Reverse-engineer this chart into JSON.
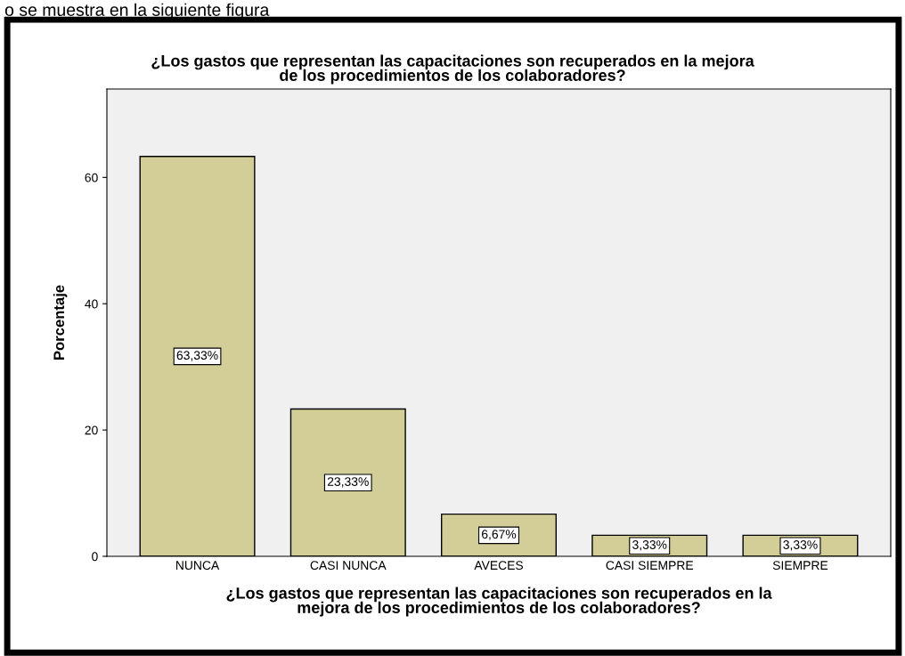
{
  "chart_data": {
    "type": "bar",
    "title": "¿Los gastos que representan las capacitaciones son recuperados en la mejora\nde los procedimientos de los colaboradores?",
    "xlabel": "¿Los gastos que representan las capacitaciones son recuperados en la\nmejora de los procedimientos de los colaboradores?",
    "ylabel": "Porcentaje",
    "annotations": [
      "o se muestra en la siguiente figura"
    ],
    "categories": [
      "NUNCA",
      "CASI NUNCA",
      "AVECES",
      "CASI SIEMPRE",
      "SIEMPRE"
    ],
    "values": [
      63.33,
      23.33,
      6.67,
      3.33,
      3.33
    ],
    "value_labels": [
      "63,33%",
      "23,33%",
      "6,67%",
      "3,33%",
      "3,33%"
    ],
    "color": "#d3ce97",
    "ylim": [
      0,
      74
    ],
    "yticks": [
      0,
      20,
      40,
      60
    ],
    "grid": false,
    "legend": false
  }
}
